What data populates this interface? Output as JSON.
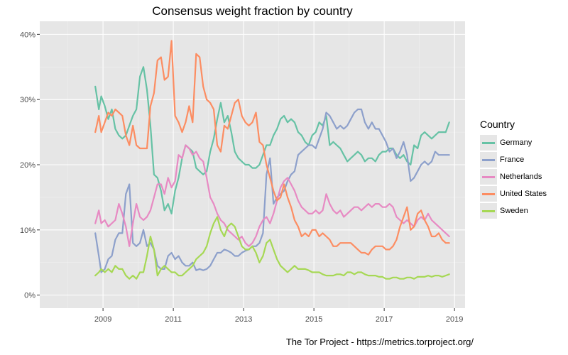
{
  "chart_data": {
    "type": "line",
    "title": "Consensus weight fraction by country",
    "caption": "The Tor Project - https://metrics.torproject.org/",
    "legend": {
      "title": "Country",
      "position": "right"
    },
    "x_ticks": [
      "2009",
      "2011",
      "2013",
      "2015",
      "2017",
      "2019"
    ],
    "x_tick_values": [
      2009,
      2011,
      2013,
      2015,
      2017,
      2019
    ],
    "xlim": [
      2007.2,
      2019.3
    ],
    "y_ticks": [
      "0%",
      "10%",
      "20%",
      "30%",
      "40%"
    ],
    "y_tick_values": [
      0,
      10,
      20,
      30,
      40
    ],
    "ylim": [
      -2,
      42
    ],
    "y_unit": "%",
    "grid": true,
    "series": [
      {
        "name": "Germany",
        "color": "#66c2a5",
        "x": [
          2008.78,
          2008.88,
          2008.95,
          2009.05,
          2009.15,
          2009.25,
          2009.35,
          2009.45,
          2009.55,
          2009.65,
          2009.75,
          2009.85,
          2009.95,
          2010.05,
          2010.15,
          2010.25,
          2010.35,
          2010.45,
          2010.55,
          2010.65,
          2010.75,
          2010.85,
          2010.95,
          2011.05,
          2011.15,
          2011.25,
          2011.35,
          2011.45,
          2011.55,
          2011.65,
          2011.75,
          2011.85,
          2011.95,
          2012.05,
          2012.15,
          2012.25,
          2012.35,
          2012.45,
          2012.55,
          2012.65,
          2012.75,
          2012.85,
          2012.95,
          2013.05,
          2013.15,
          2013.25,
          2013.35,
          2013.45,
          2013.55,
          2013.65,
          2013.75,
          2013.85,
          2013.95,
          2014.05,
          2014.15,
          2014.25,
          2014.35,
          2014.45,
          2014.55,
          2014.65,
          2014.75,
          2014.85,
          2014.95,
          2015.05,
          2015.15,
          2015.25,
          2015.35,
          2015.45,
          2015.55,
          2015.65,
          2015.75,
          2015.85,
          2015.95,
          2016.05,
          2016.15,
          2016.25,
          2016.35,
          2016.45,
          2016.55,
          2016.65,
          2016.75,
          2016.85,
          2016.95,
          2017.05,
          2017.15,
          2017.25,
          2017.35,
          2017.45,
          2017.55,
          2017.65,
          2017.75,
          2017.85,
          2017.95,
          2018.05,
          2018.15,
          2018.25,
          2018.35,
          2018.45,
          2018.55,
          2018.65,
          2018.75,
          2018.85
        ],
        "y": [
          32.0,
          28.5,
          30.5,
          29.0,
          27.0,
          28.5,
          25.5,
          24.5,
          24.0,
          24.5,
          26.0,
          27.5,
          28.5,
          33.5,
          35.0,
          31.5,
          26.0,
          18.5,
          18.0,
          16.0,
          13.0,
          14.0,
          12.5,
          16.0,
          18.0,
          21.0,
          23.0,
          22.5,
          22.0,
          19.5,
          19.0,
          18.5,
          19.0,
          22.0,
          24.0,
          27.0,
          29.5,
          26.5,
          27.5,
          25.0,
          22.0,
          21.0,
          20.5,
          20.0,
          20.0,
          19.5,
          19.5,
          20.0,
          21.5,
          23.0,
          23.0,
          24.5,
          25.5,
          27.0,
          27.5,
          26.5,
          27.0,
          26.5,
          25.0,
          24.5,
          23.5,
          23.0,
          24.5,
          25.0,
          26.5,
          26.0,
          27.5,
          23.0,
          23.5,
          23.0,
          22.5,
          21.5,
          20.5,
          21.0,
          21.5,
          22.0,
          21.5,
          20.5,
          21.0,
          21.0,
          20.5,
          21.5,
          22.0,
          22.0,
          22.5,
          22.5,
          21.5,
          21.0,
          21.5,
          20.5,
          20.0,
          23.0,
          22.5,
          24.5,
          25.0,
          24.5,
          24.0,
          24.5,
          25.0,
          25.0,
          25.0,
          26.5
        ]
      },
      {
        "name": "France",
        "color": "#8da0cb",
        "x": [
          2008.78,
          2008.88,
          2008.95,
          2009.05,
          2009.15,
          2009.25,
          2009.35,
          2009.45,
          2009.55,
          2009.65,
          2009.75,
          2009.85,
          2009.95,
          2010.05,
          2010.15,
          2010.25,
          2010.35,
          2010.45,
          2010.55,
          2010.65,
          2010.75,
          2010.85,
          2010.95,
          2011.05,
          2011.15,
          2011.25,
          2011.35,
          2011.45,
          2011.55,
          2011.65,
          2011.75,
          2011.85,
          2011.95,
          2012.05,
          2012.15,
          2012.25,
          2012.35,
          2012.45,
          2012.55,
          2012.65,
          2012.75,
          2012.85,
          2012.95,
          2013.05,
          2013.15,
          2013.25,
          2013.35,
          2013.45,
          2013.55,
          2013.65,
          2013.75,
          2013.85,
          2013.95,
          2014.05,
          2014.15,
          2014.25,
          2014.35,
          2014.45,
          2014.55,
          2014.65,
          2014.75,
          2014.85,
          2014.95,
          2015.05,
          2015.15,
          2015.25,
          2015.35,
          2015.45,
          2015.55,
          2015.65,
          2015.75,
          2015.85,
          2015.95,
          2016.05,
          2016.15,
          2016.25,
          2016.35,
          2016.45,
          2016.55,
          2016.65,
          2016.75,
          2016.85,
          2016.95,
          2017.05,
          2017.15,
          2017.25,
          2017.35,
          2017.45,
          2017.55,
          2017.65,
          2017.75,
          2017.85,
          2017.95,
          2018.05,
          2018.15,
          2018.25,
          2018.35,
          2018.45,
          2018.55,
          2018.65,
          2018.75,
          2018.85
        ],
        "y": [
          9.5,
          6.0,
          3.5,
          4.0,
          5.5,
          6.0,
          8.5,
          9.5,
          9.5,
          15.5,
          17.0,
          8.0,
          7.5,
          8.0,
          10.0,
          7.5,
          8.0,
          7.0,
          4.5,
          4.0,
          4.0,
          6.0,
          6.5,
          5.5,
          6.0,
          5.0,
          4.5,
          4.5,
          5.0,
          3.8,
          4.0,
          3.8,
          4.0,
          4.5,
          5.5,
          6.5,
          6.5,
          7.0,
          6.8,
          6.5,
          6.0,
          6.0,
          6.5,
          6.8,
          7.0,
          7.5,
          7.5,
          8.0,
          9.5,
          18.5,
          21.0,
          14.0,
          15.0,
          15.5,
          16.0,
          17.5,
          18.5,
          19.0,
          21.5,
          22.0,
          22.5,
          23.0,
          23.0,
          22.5,
          24.0,
          25.5,
          28.0,
          27.5,
          26.5,
          25.5,
          26.0,
          25.5,
          26.0,
          27.0,
          28.0,
          28.5,
          28.5,
          26.5,
          25.5,
          26.5,
          25.5,
          25.5,
          24.5,
          23.5,
          22.0,
          22.5,
          21.0,
          22.0,
          23.5,
          21.5,
          17.5,
          18.0,
          19.0,
          20.0,
          20.5,
          20.0,
          20.5,
          22.0,
          21.5,
          21.5,
          21.5,
          21.5
        ]
      },
      {
        "name": "Netherlands",
        "color": "#e78ac3",
        "x": [
          2008.78,
          2008.88,
          2008.95,
          2009.05,
          2009.15,
          2009.25,
          2009.35,
          2009.45,
          2009.55,
          2009.65,
          2009.75,
          2009.85,
          2009.95,
          2010.05,
          2010.15,
          2010.25,
          2010.35,
          2010.45,
          2010.55,
          2010.65,
          2010.75,
          2010.85,
          2010.95,
          2011.05,
          2011.15,
          2011.25,
          2011.35,
          2011.45,
          2011.55,
          2011.65,
          2011.75,
          2011.85,
          2011.95,
          2012.05,
          2012.15,
          2012.25,
          2012.35,
          2012.45,
          2012.55,
          2012.65,
          2012.75,
          2012.85,
          2012.95,
          2013.05,
          2013.15,
          2013.25,
          2013.35,
          2013.45,
          2013.55,
          2013.65,
          2013.75,
          2013.85,
          2013.95,
          2014.05,
          2014.15,
          2014.25,
          2014.35,
          2014.45,
          2014.55,
          2014.65,
          2014.75,
          2014.85,
          2014.95,
          2015.05,
          2015.15,
          2015.25,
          2015.35,
          2015.45,
          2015.55,
          2015.65,
          2015.75,
          2015.85,
          2015.95,
          2016.05,
          2016.15,
          2016.25,
          2016.35,
          2016.45,
          2016.55,
          2016.65,
          2016.75,
          2016.85,
          2016.95,
          2017.05,
          2017.15,
          2017.25,
          2017.35,
          2017.45,
          2017.55,
          2017.65,
          2017.75,
          2017.85,
          2017.95,
          2018.05,
          2018.15,
          2018.25,
          2018.35,
          2018.45,
          2018.55,
          2018.65,
          2018.75,
          2018.85
        ],
        "y": [
          11.0,
          13.0,
          11.0,
          11.5,
          10.5,
          11.0,
          11.5,
          14.0,
          12.5,
          10.5,
          7.5,
          11.0,
          14.0,
          12.0,
          11.5,
          12.0,
          13.0,
          15.0,
          17.0,
          17.0,
          15.5,
          18.0,
          16.5,
          17.5,
          21.5,
          21.0,
          23.0,
          22.5,
          21.5,
          22.0,
          21.0,
          20.5,
          18.0,
          15.0,
          14.0,
          12.5,
          11.5,
          11.0,
          10.0,
          9.5,
          9.0,
          8.5,
          9.0,
          8.0,
          7.5,
          8.0,
          9.0,
          10.5,
          11.5,
          12.0,
          11.0,
          12.5,
          14.5,
          16.5,
          17.5,
          18.0,
          17.0,
          16.0,
          14.5,
          13.5,
          13.0,
          12.5,
          12.5,
          13.0,
          12.5,
          13.0,
          15.5,
          14.0,
          13.0,
          12.5,
          13.0,
          12.0,
          12.5,
          13.0,
          13.5,
          13.5,
          13.0,
          13.5,
          14.0,
          13.5,
          14.0,
          14.0,
          13.5,
          13.5,
          14.0,
          13.5,
          12.0,
          11.5,
          11.0,
          11.5,
          11.0,
          10.5,
          11.5,
          12.0,
          11.5,
          12.5,
          11.5,
          11.0,
          10.5,
          10.0,
          9.5,
          9.0
        ]
      },
      {
        "name": "United States",
        "color": "#fc8d62",
        "x": [
          2008.78,
          2008.88,
          2008.95,
          2009.05,
          2009.15,
          2009.25,
          2009.35,
          2009.45,
          2009.55,
          2009.65,
          2009.75,
          2009.85,
          2009.95,
          2010.05,
          2010.15,
          2010.25,
          2010.35,
          2010.45,
          2010.55,
          2010.65,
          2010.75,
          2010.85,
          2010.95,
          2011.05,
          2011.15,
          2011.25,
          2011.35,
          2011.45,
          2011.55,
          2011.65,
          2011.75,
          2011.85,
          2011.95,
          2012.05,
          2012.15,
          2012.25,
          2012.35,
          2012.45,
          2012.55,
          2012.65,
          2012.75,
          2012.85,
          2012.95,
          2013.05,
          2013.15,
          2013.25,
          2013.35,
          2013.45,
          2013.55,
          2013.65,
          2013.75,
          2013.85,
          2013.95,
          2014.05,
          2014.15,
          2014.25,
          2014.35,
          2014.45,
          2014.55,
          2014.65,
          2014.75,
          2014.85,
          2014.95,
          2015.05,
          2015.15,
          2015.25,
          2015.35,
          2015.45,
          2015.55,
          2015.65,
          2015.75,
          2015.85,
          2015.95,
          2016.05,
          2016.15,
          2016.25,
          2016.35,
          2016.45,
          2016.55,
          2016.65,
          2016.75,
          2016.85,
          2016.95,
          2017.05,
          2017.15,
          2017.25,
          2017.35,
          2017.45,
          2017.55,
          2017.65,
          2017.75,
          2017.85,
          2017.95,
          2018.05,
          2018.15,
          2018.25,
          2018.35,
          2018.45,
          2018.55,
          2018.65,
          2018.75,
          2018.85
        ],
        "y": [
          25.0,
          27.5,
          25.0,
          26.5,
          28.0,
          27.5,
          28.5,
          28.0,
          27.5,
          24.5,
          23.0,
          26.0,
          23.0,
          22.5,
          22.5,
          22.5,
          29.0,
          31.0,
          36.0,
          36.5,
          33.0,
          33.5,
          39.0,
          27.5,
          26.5,
          25.0,
          26.5,
          29.0,
          26.5,
          37.0,
          36.5,
          32.0,
          30.0,
          29.5,
          28.5,
          23.0,
          22.0,
          26.0,
          25.5,
          27.5,
          29.5,
          30.0,
          27.5,
          26.5,
          26.0,
          26.5,
          28.0,
          23.5,
          23.0,
          20.0,
          18.0,
          16.0,
          14.5,
          15.0,
          17.0,
          15.0,
          13.5,
          11.5,
          10.5,
          9.0,
          9.5,
          9.0,
          10.0,
          10.0,
          9.0,
          9.5,
          9.0,
          8.5,
          7.5,
          7.5,
          8.0,
          8.0,
          8.0,
          8.0,
          7.5,
          7.0,
          6.5,
          6.5,
          6.2,
          7.0,
          7.5,
          7.5,
          7.5,
          7.0,
          7.0,
          7.5,
          8.5,
          10.5,
          12.0,
          13.5,
          10.0,
          10.5,
          12.5,
          13.0,
          11.5,
          10.5,
          9.0,
          9.0,
          9.5,
          8.5,
          8.0,
          8.0
        ]
      },
      {
        "name": "Sweden",
        "color": "#a6d854",
        "x": [
          2008.78,
          2008.88,
          2008.95,
          2009.05,
          2009.15,
          2009.25,
          2009.35,
          2009.45,
          2009.55,
          2009.65,
          2009.75,
          2009.85,
          2009.95,
          2010.05,
          2010.15,
          2010.25,
          2010.35,
          2010.45,
          2010.55,
          2010.65,
          2010.75,
          2010.85,
          2010.95,
          2011.05,
          2011.15,
          2011.25,
          2011.35,
          2011.45,
          2011.55,
          2011.65,
          2011.75,
          2011.85,
          2011.95,
          2012.05,
          2012.15,
          2012.25,
          2012.35,
          2012.45,
          2012.55,
          2012.65,
          2012.75,
          2012.85,
          2012.95,
          2013.05,
          2013.15,
          2013.25,
          2013.35,
          2013.45,
          2013.55,
          2013.65,
          2013.75,
          2013.85,
          2013.95,
          2014.05,
          2014.15,
          2014.25,
          2014.35,
          2014.45,
          2014.55,
          2014.65,
          2014.75,
          2014.85,
          2014.95,
          2015.05,
          2015.15,
          2015.25,
          2015.35,
          2015.45,
          2015.55,
          2015.65,
          2015.75,
          2015.85,
          2015.95,
          2016.05,
          2016.15,
          2016.25,
          2016.35,
          2016.45,
          2016.55,
          2016.65,
          2016.75,
          2016.85,
          2016.95,
          2017.05,
          2017.15,
          2017.25,
          2017.35,
          2017.45,
          2017.55,
          2017.65,
          2017.75,
          2017.85,
          2017.95,
          2018.05,
          2018.15,
          2018.25,
          2018.35,
          2018.45,
          2018.55,
          2018.65,
          2018.75,
          2018.85
        ],
        "y": [
          3.0,
          3.5,
          4.0,
          3.5,
          4.0,
          3.5,
          4.5,
          4.0,
          4.0,
          3.0,
          2.5,
          3.0,
          2.5,
          3.5,
          3.5,
          6.0,
          9.0,
          7.0,
          3.0,
          4.0,
          4.5,
          4.0,
          3.5,
          3.5,
          3.0,
          3.0,
          3.5,
          4.0,
          4.5,
          5.5,
          6.0,
          6.5,
          7.5,
          9.5,
          11.0,
          12.0,
          10.0,
          9.0,
          10.5,
          11.0,
          10.5,
          9.0,
          7.5,
          7.0,
          7.0,
          7.5,
          6.5,
          5.0,
          6.0,
          8.0,
          8.5,
          7.0,
          5.5,
          4.5,
          4.0,
          3.5,
          4.0,
          4.5,
          4.0,
          4.0,
          4.0,
          3.8,
          3.5,
          3.5,
          3.5,
          3.2,
          3.0,
          3.0,
          3.0,
          3.2,
          3.2,
          3.0,
          3.5,
          3.5,
          3.2,
          3.5,
          3.5,
          3.2,
          3.0,
          3.0,
          3.0,
          2.8,
          2.8,
          2.5,
          2.5,
          2.7,
          2.7,
          2.5,
          2.5,
          2.7,
          2.7,
          2.5,
          2.8,
          2.8,
          2.8,
          3.0,
          2.8,
          3.0,
          3.0,
          2.8,
          3.0,
          3.2
        ]
      }
    ]
  }
}
